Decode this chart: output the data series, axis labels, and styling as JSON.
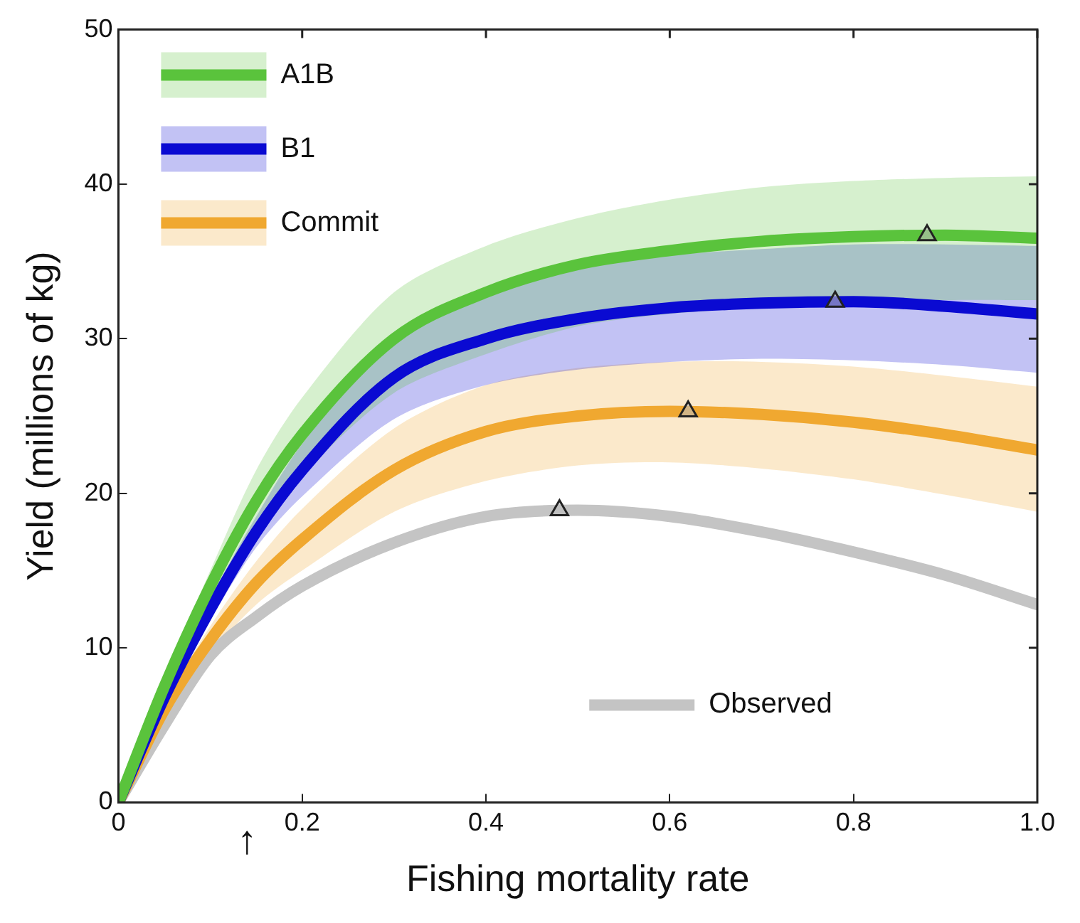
{
  "chart_data": {
    "type": "line",
    "xlabel": "Fishing mortality rate",
    "ylabel": "Yield (millions of kg)",
    "x": [
      0,
      0.05,
      0.1,
      0.15,
      0.2,
      0.3,
      0.4,
      0.5,
      0.6,
      0.7,
      0.8,
      0.9,
      1.0
    ],
    "series": [
      {
        "name": "A1B",
        "color": "#5ac33c",
        "values": [
          0,
          7.5,
          14,
          19.5,
          23.8,
          30,
          33,
          34.8,
          35.7,
          36.3,
          36.6,
          36.7,
          36.5
        ],
        "lower": [
          0,
          7,
          12.8,
          17.5,
          21.2,
          26.5,
          29,
          30.8,
          31.6,
          32,
          32.3,
          32.5,
          32.5
        ],
        "upper": [
          0,
          8,
          15,
          21.5,
          26.2,
          33,
          36,
          37.8,
          39,
          39.8,
          40.2,
          40.4,
          40.5
        ]
      },
      {
        "name": "B1",
        "color": "#0a0ad2",
        "values": [
          0,
          6.8,
          12.5,
          17.5,
          21.5,
          27.5,
          30,
          31.3,
          32,
          32.3,
          32.4,
          32.1,
          31.6
        ],
        "lower": [
          0,
          6.5,
          11.8,
          16.5,
          19.8,
          24.8,
          27,
          28,
          28.5,
          28.7,
          28.6,
          28.3,
          27.8
        ],
        "upper": [
          0,
          7.2,
          13.2,
          18.5,
          23.2,
          30,
          33,
          34.6,
          35.4,
          35.8,
          36.1,
          36.1,
          36
        ]
      },
      {
        "name": "Commit",
        "color": "#f0a830",
        "values": [
          0,
          6,
          10.5,
          14.2,
          17,
          21.5,
          24,
          25,
          25.3,
          25.1,
          24.6,
          23.8,
          22.8
        ],
        "lower": [
          0,
          5.6,
          9.6,
          12.8,
          15,
          18.8,
          20.8,
          21.8,
          22,
          21.6,
          20.9,
          19.9,
          18.8
        ],
        "upper": [
          0,
          6.4,
          11.4,
          15.6,
          19,
          24.2,
          27,
          28.1,
          28.5,
          28.5,
          28.2,
          27.6,
          26.9
        ]
      },
      {
        "name": "Observed",
        "color": "#c4c4c4",
        "values": [
          0,
          5,
          9.5,
          12,
          14,
          16.8,
          18.5,
          18.9,
          18.5,
          17.5,
          16.2,
          14.7,
          12.8
        ]
      },
      {
        "type": "scatter",
        "color": "#222222",
        "marker": "triangle",
        "x": [
          0.88,
          0.78,
          0.62,
          0.48
        ],
        "values": [
          36.7,
          32.4,
          25.3,
          18.9
        ]
      }
    ],
    "xlim": [
      0,
      1
    ],
    "xticks": [
      0,
      0.2,
      0.4,
      0.6,
      0.8,
      {
        "value": 1,
        "label": "1.0"
      }
    ],
    "ylim": [
      0,
      50
    ],
    "yticks": [
      0,
      10,
      20,
      30,
      40,
      50
    ],
    "grid": false,
    "legend": "top left",
    "marker": "none",
    "annotations": [
      "↑"
    ]
  }
}
